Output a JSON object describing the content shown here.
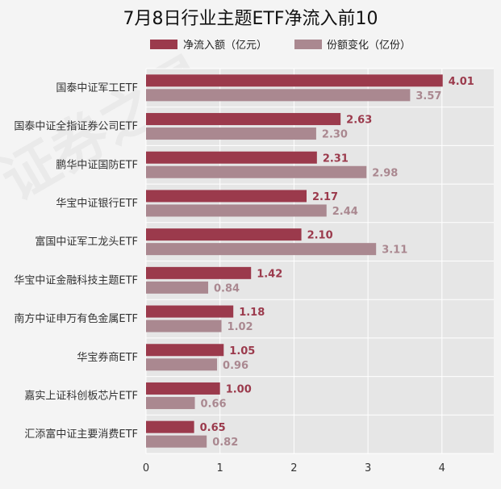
{
  "chart_data": {
    "type": "bar",
    "orientation": "horizontal",
    "title": "7月8日行业主题ETF净流入前10",
    "categories": [
      "国泰中证军工ETF",
      "国泰中证全指证券公司ETF",
      "鹏华中证国防ETF",
      "华宝中证银行ETF",
      "富国中证军工龙头ETF",
      "华宝中证金融科技主题ETF",
      "南方中证申万有色金属ETF",
      "华宝券商ETF",
      "嘉实上证科创板芯片ETF",
      "汇添富中证主要消费ETF"
    ],
    "series": [
      {
        "name": "净流入额（亿元）",
        "color": "#9b3a4c",
        "values": [
          4.01,
          2.63,
          2.31,
          2.17,
          2.1,
          1.42,
          1.18,
          1.05,
          1.0,
          0.65
        ],
        "labels": [
          "4.01",
          "2.63",
          "2.31",
          "2.17",
          "2.10",
          "1.42",
          "1.18",
          "1.05",
          "1.00",
          "0.65"
        ]
      },
      {
        "name": "份额变化（亿份）",
        "color": "#aa8890",
        "values": [
          3.57,
          2.3,
          2.98,
          2.44,
          3.11,
          0.84,
          1.02,
          0.96,
          0.66,
          0.82
        ],
        "labels": [
          "3.57",
          "2.30",
          "2.98",
          "2.44",
          "3.11",
          "0.84",
          "1.02",
          "0.96",
          "0.66",
          "0.82"
        ]
      }
    ],
    "xlim": [
      0,
      4.7
    ],
    "xticks": [
      "0",
      "1",
      "2",
      "3",
      "4"
    ],
    "grid": true,
    "legend_position": "top"
  }
}
